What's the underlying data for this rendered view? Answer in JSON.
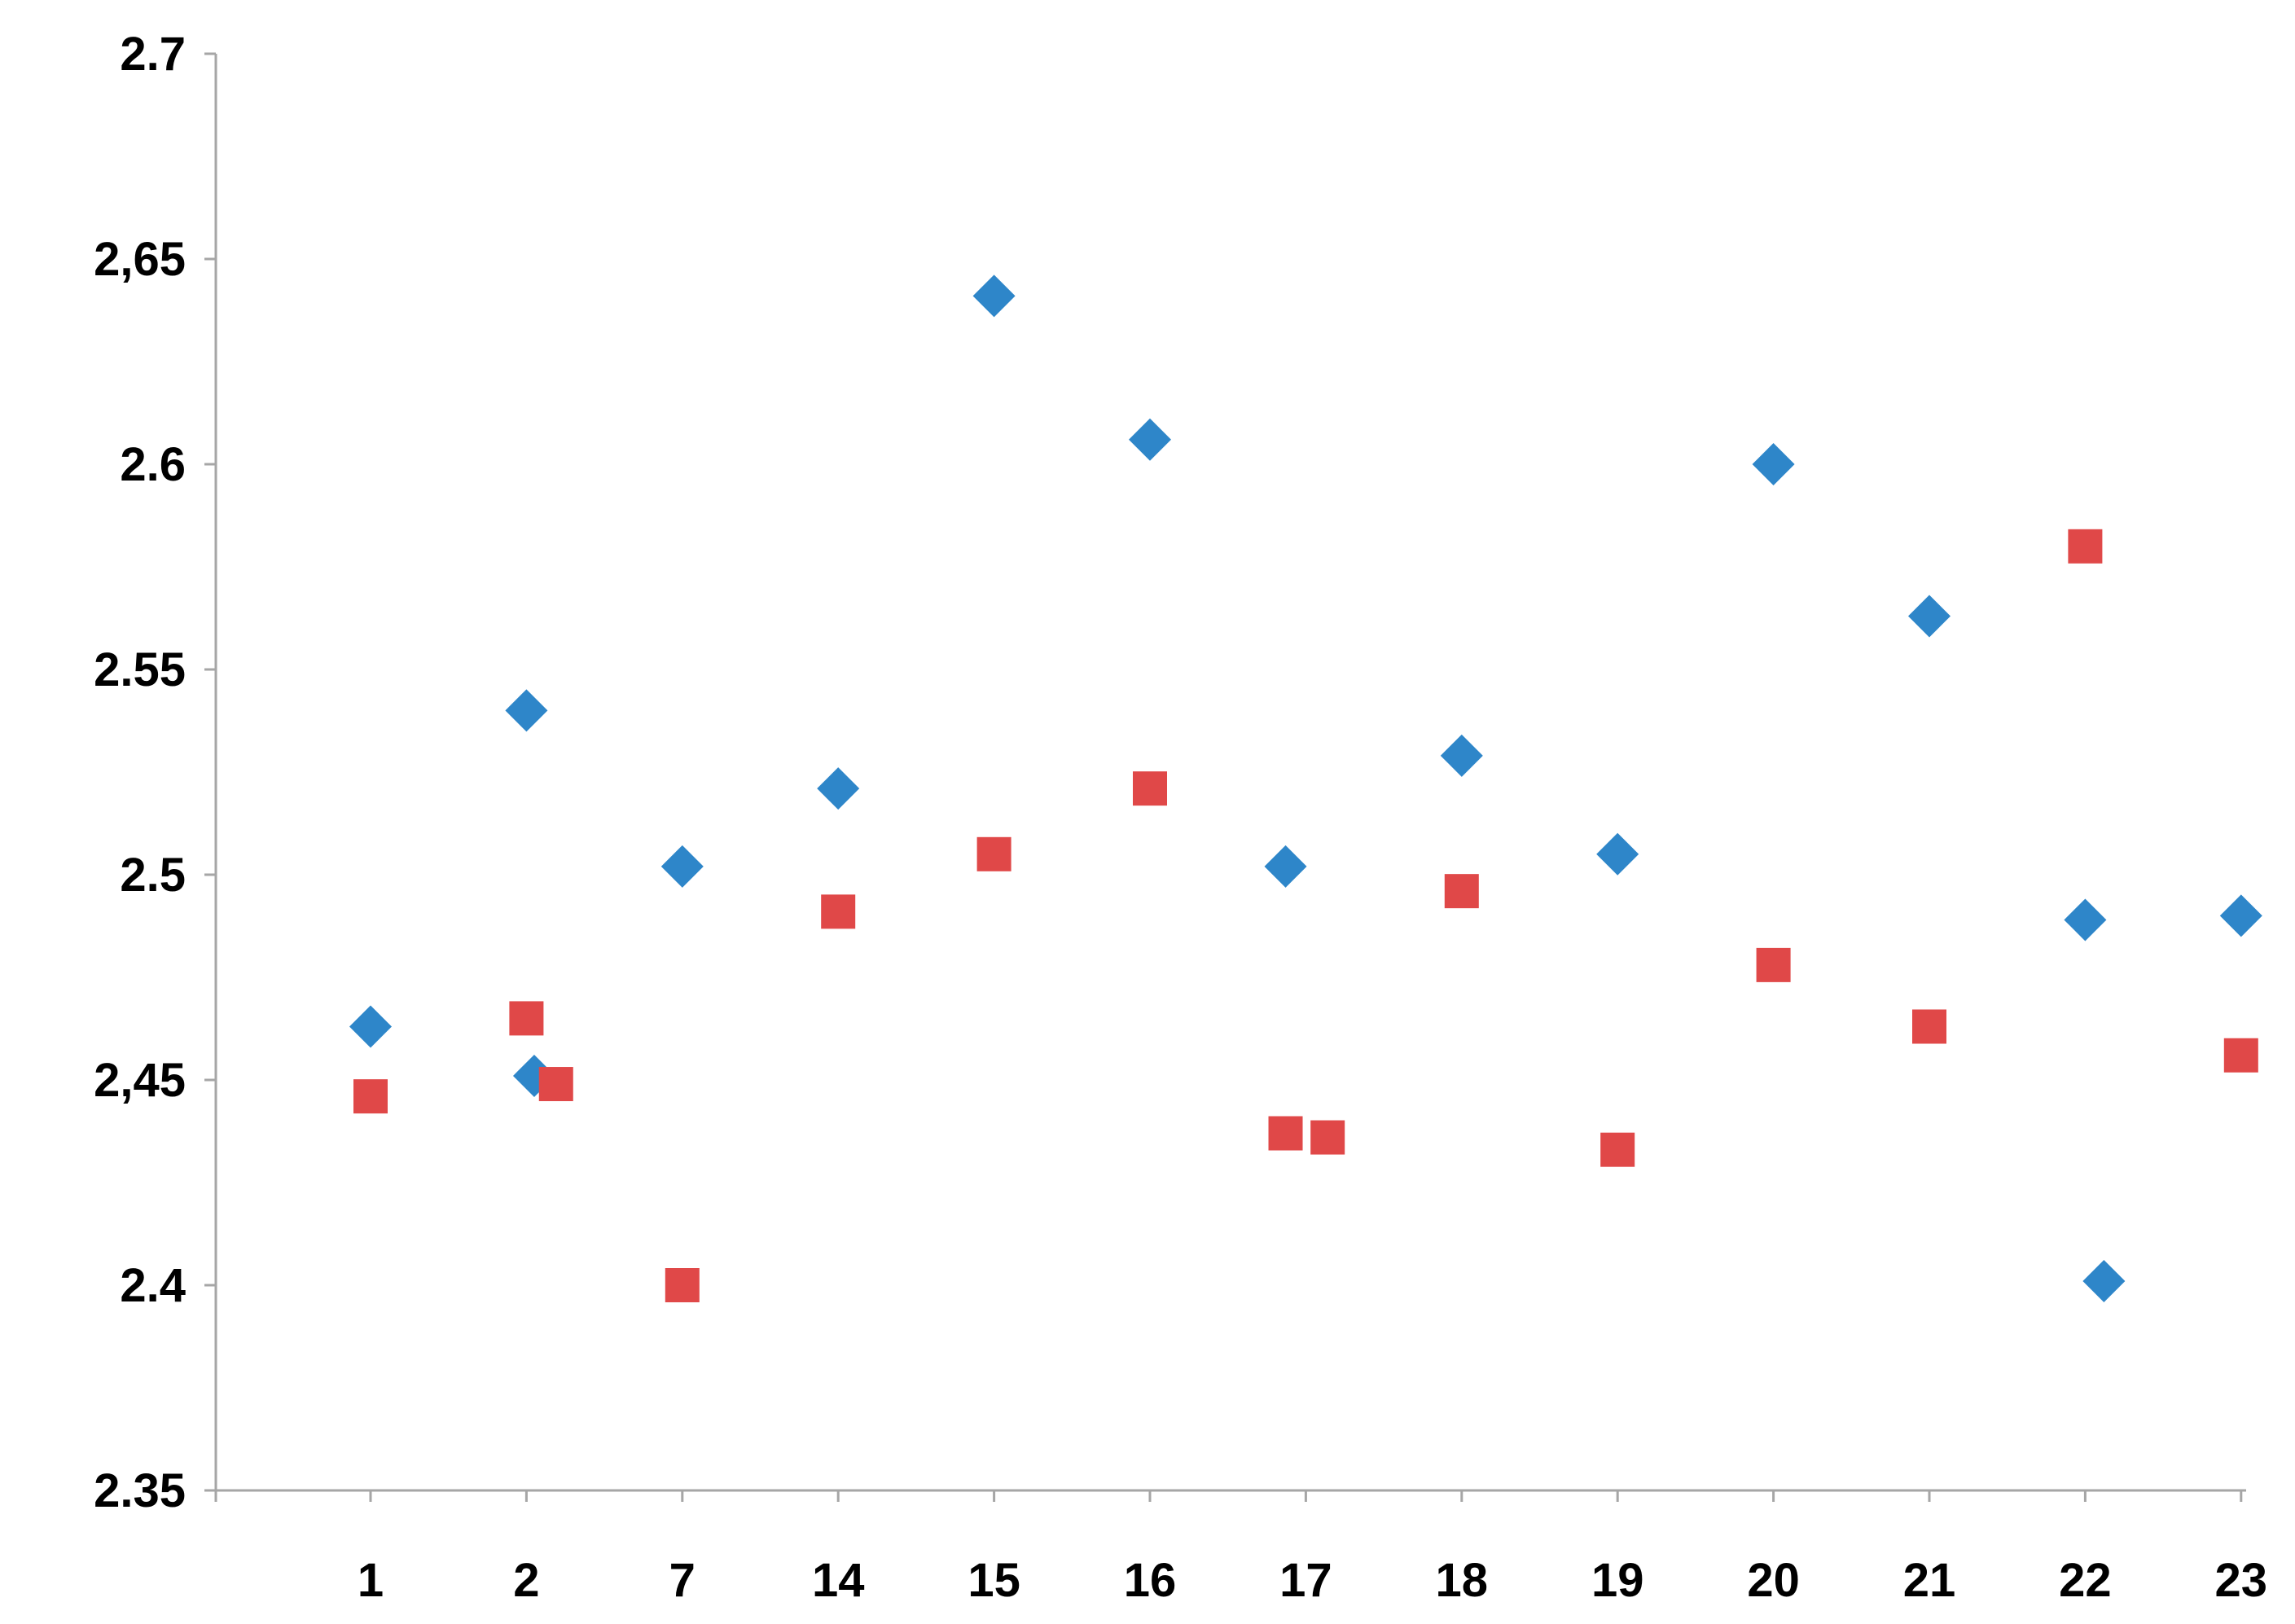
{
  "chart_data": {
    "type": "scatter",
    "title": "",
    "xlabel": "",
    "ylabel": "",
    "categories": [
      "1",
      "2",
      "7",
      "14",
      "15",
      "16",
      "17",
      "18",
      "19",
      "20",
      "21",
      "22",
      "23"
    ],
    "ylim": [
      2.35,
      2.7
    ],
    "y_ticks": [
      "2.35",
      "2.4",
      "2,45",
      "2.5",
      "2.55",
      "2.6",
      "2,65",
      "2.7"
    ],
    "grid": false,
    "legend": "none",
    "series": [
      {
        "marker": "diamond",
        "color": "#2e86c9",
        "points": [
          {
            "x": 1,
            "y": 2.463
          },
          {
            "x": 2,
            "y": 2.54
          },
          {
            "x": 2.05,
            "y": 2.451
          },
          {
            "x": 3,
            "y": 2.502
          },
          {
            "x": 4,
            "y": 2.521
          },
          {
            "x": 5,
            "y": 2.641
          },
          {
            "x": 6,
            "y": 2.606
          },
          {
            "x": 6.87,
            "y": 2.502
          },
          {
            "x": 8,
            "y": 2.529
          },
          {
            "x": 9,
            "y": 2.505
          },
          {
            "x": 10,
            "y": 2.6
          },
          {
            "x": 11,
            "y": 2.563
          },
          {
            "x": 12,
            "y": 2.489
          },
          {
            "x": 12.12,
            "y": 2.401
          },
          {
            "x": 13,
            "y": 2.49
          }
        ]
      },
      {
        "marker": "square",
        "color": "#e04848",
        "points": [
          {
            "x": 1,
            "y": 2.446
          },
          {
            "x": 2,
            "y": 2.465
          },
          {
            "x": 2.19,
            "y": 2.449
          },
          {
            "x": 3,
            "y": 2.4
          },
          {
            "x": 4,
            "y": 2.491
          },
          {
            "x": 5,
            "y": 2.505
          },
          {
            "x": 6,
            "y": 2.521
          },
          {
            "x": 6.87,
            "y": 2.437
          },
          {
            "x": 7.14,
            "y": 2.436
          },
          {
            "x": 8,
            "y": 2.496
          },
          {
            "x": 9,
            "y": 2.433
          },
          {
            "x": 10,
            "y": 2.478
          },
          {
            "x": 11,
            "y": 2.463
          },
          {
            "x": 12,
            "y": 2.58
          },
          {
            "x": 13,
            "y": 2.456
          }
        ]
      }
    ]
  }
}
